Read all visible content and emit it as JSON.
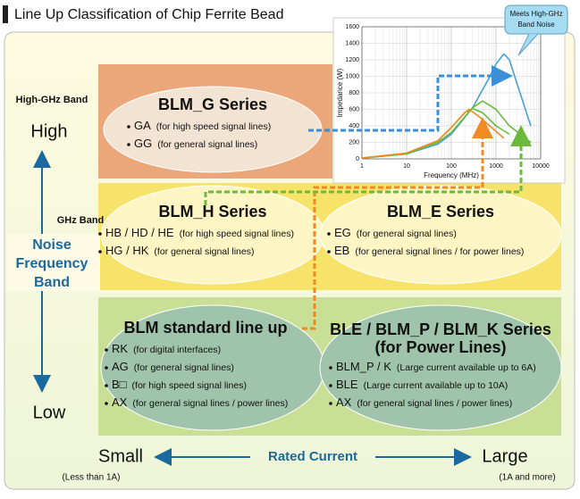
{
  "title": "Line Up Classification of Chip Ferrite Bead",
  "frequency_axis": {
    "high_ghz_band": "High-GHz Band",
    "high": "High",
    "ghz_band": "GHz Band",
    "label_lines": [
      "Noise",
      "Frequency",
      "Band"
    ],
    "low": "Low"
  },
  "current_axis": {
    "small": "Small",
    "small_note": "(Less than 1A)",
    "label": "Rated Current",
    "large": "Large",
    "large_note": "(1A and more)"
  },
  "groups": [
    {
      "title": [
        "BLM_G Series"
      ],
      "items": [
        {
          "code": "GA",
          "desc": "(for high speed signal lines)"
        },
        {
          "code": "GG",
          "desc": "(for general signal lines)"
        }
      ]
    },
    {
      "title": [
        "BLM_H Series"
      ],
      "items": [
        {
          "code": "HB / HD / HE",
          "desc": "(for high speed signal lines)"
        },
        {
          "code": "HG / HK",
          "desc": "(for general signal lines)"
        }
      ]
    },
    {
      "title": [
        "BLM_E Series"
      ],
      "items": [
        {
          "code": "EG",
          "desc": "(for general signal lines)"
        },
        {
          "code": "EB",
          "desc": "(for general signal lines / for power lines)"
        }
      ]
    },
    {
      "title": [
        "BLM standard line up"
      ],
      "items": [
        {
          "code": "RK",
          "desc": "(for digital interfaces)"
        },
        {
          "code": "AG",
          "desc": "(for general signal lines)"
        },
        {
          "code": "B□",
          "desc": "(for high speed signal lines)"
        },
        {
          "code": "AX",
          "desc": "(for general signal lines / power lines)"
        }
      ]
    },
    {
      "title": [
        "BLE / BLM_P / BLM_K Series",
        "(for Power Lines)"
      ],
      "items": [
        {
          "code": "BLM_P / K",
          "desc": "(Large current available up to 6A)"
        },
        {
          "code": "BLE",
          "desc": "(Large current available up to 10A)"
        },
        {
          "code": "AX",
          "desc": "(for general signal lines / power lines)"
        }
      ]
    }
  ],
  "chart_data": {
    "type": "line",
    "xlabel": "Frequency (MHz)",
    "ylabel": "Impedance (W)",
    "callout": [
      "Meets High-GHz",
      "Band Noise"
    ],
    "log_x": true,
    "xlim": [
      1,
      10000
    ],
    "ylim": [
      0,
      1600
    ],
    "xticks": [
      1,
      10,
      100,
      1000,
      10000
    ],
    "yticks": [
      0,
      200,
      400,
      600,
      800,
      1000,
      1200,
      1400,
      1600
    ],
    "grid": true,
    "series": [
      {
        "color": "#4a9fd8",
        "x": [
          1,
          10,
          50,
          100,
          300,
          700,
          1000,
          1500,
          2000,
          3000,
          6000
        ],
        "values": [
          10,
          60,
          180,
          300,
          620,
          980,
          1150,
          1270,
          1200,
          900,
          400
        ]
      },
      {
        "color": "#6cba3c",
        "x": [
          1,
          10,
          50,
          100,
          300,
          500,
          1000,
          2000,
          6000
        ],
        "values": [
          10,
          60,
          200,
          320,
          620,
          700,
          600,
          400,
          200
        ]
      },
      {
        "color": "#6cba3c",
        "x": [
          1,
          10,
          50,
          100,
          200,
          300,
          500,
          1000,
          2000
        ],
        "values": [
          10,
          70,
          220,
          380,
          560,
          610,
          560,
          400,
          300
        ]
      },
      {
        "color": "#f08a24",
        "x": [
          1,
          10,
          50,
          100,
          200,
          250,
          400,
          800,
          1500
        ],
        "values": [
          10,
          70,
          220,
          380,
          560,
          600,
          520,
          380,
          250
        ]
      }
    ]
  }
}
